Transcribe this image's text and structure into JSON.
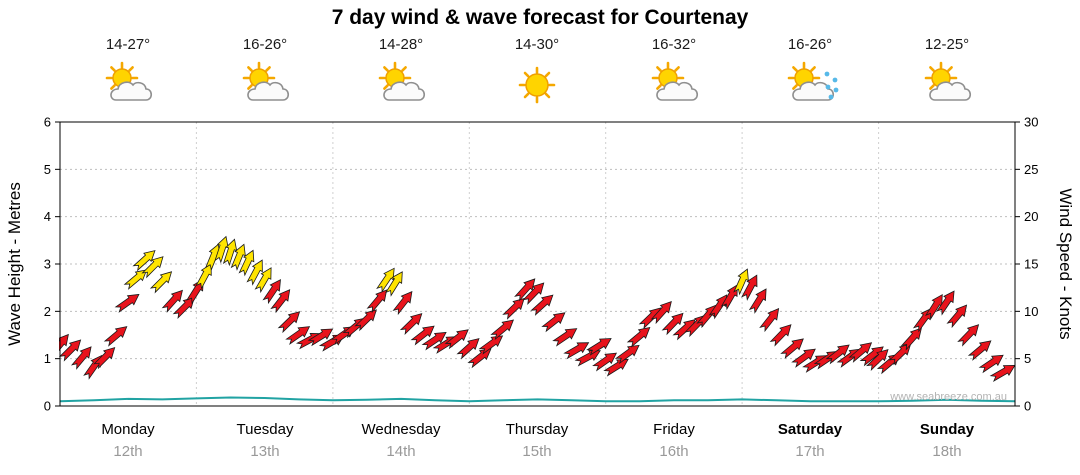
{
  "chart_data": {
    "type": "scatter",
    "marker": "directional-wind-arrow",
    "title": "7 day wind & wave forecast for Courtenay",
    "watermark": "www.seabreeze.com.au",
    "left_axis_label": "Wave Height - Metres",
    "right_axis_label": "Wind Speed - Knots",
    "left_ticks": [
      0,
      1,
      2,
      3,
      4,
      5,
      6
    ],
    "right_ticks": [
      0,
      5,
      10,
      15,
      20,
      25,
      30
    ],
    "grid": "dotted-horizontal-and-day-boundaries",
    "legend": "none",
    "days": [
      {
        "name": "Monday",
        "date": "12th",
        "temp": "14-27°",
        "icon": "partly-cloudy",
        "bold": false
      },
      {
        "name": "Tuesday",
        "date": "13th",
        "temp": "16-26°",
        "icon": "partly-cloudy",
        "bold": false
      },
      {
        "name": "Wednesday",
        "date": "14th",
        "temp": "14-28°",
        "icon": "partly-cloudy",
        "bold": false
      },
      {
        "name": "Thursday",
        "date": "15th",
        "temp": "14-30°",
        "icon": "sunny",
        "bold": false
      },
      {
        "name": "Friday",
        "date": "16th",
        "temp": "16-32°",
        "icon": "partly-cloudy",
        "bold": false
      },
      {
        "name": "Saturday",
        "date": "17th",
        "temp": "16-26°",
        "icon": "rain-showers",
        "bold": true
      },
      {
        "name": "Sunday",
        "date": "18th",
        "temp": "12-25°",
        "icon": "partly-cloudy",
        "bold": true
      }
    ],
    "colors": {
      "moderate": "#e8131c",
      "strong": "#ffe400",
      "wave": "#21a3a3",
      "yellow_threshold_knots": 13
    },
    "wind": {
      "unit": "knots",
      "ylim": [
        0,
        30
      ],
      "points_format": [
        "hours_from_start",
        "speed_knots",
        "direction_deg_to"
      ],
      "points": [
        [
          0,
          6.5,
          40
        ],
        [
          2,
          6.0,
          45
        ],
        [
          4,
          5.2,
          40
        ],
        [
          6,
          4.2,
          35
        ],
        [
          8,
          5.2,
          45
        ],
        [
          10,
          7.5,
          50
        ],
        [
          12,
          11.0,
          55
        ],
        [
          13.5,
          13.5,
          50
        ],
        [
          15,
          15.5,
          48
        ],
        [
          16.5,
          14.8,
          45
        ],
        [
          18,
          13.2,
          45
        ],
        [
          20,
          11.2,
          42
        ],
        [
          22,
          10.5,
          45
        ],
        [
          24,
          12.2,
          32
        ],
        [
          25.5,
          13.8,
          28
        ],
        [
          27,
          15.8,
          22
        ],
        [
          28.5,
          16.6,
          18
        ],
        [
          30,
          16.3,
          18
        ],
        [
          31.5,
          15.8,
          22
        ],
        [
          33,
          15.2,
          25
        ],
        [
          34.5,
          14.2,
          28
        ],
        [
          36,
          13.4,
          30
        ],
        [
          37.5,
          12.2,
          34
        ],
        [
          39,
          11.2,
          38
        ],
        [
          40.5,
          9.0,
          46
        ],
        [
          42,
          7.6,
          55
        ],
        [
          44,
          7.0,
          62
        ],
        [
          46,
          7.4,
          58
        ],
        [
          48,
          6.8,
          60
        ],
        [
          50,
          7.6,
          55
        ],
        [
          52,
          8.4,
          50
        ],
        [
          54,
          9.2,
          46
        ],
        [
          56,
          11.2,
          40
        ],
        [
          57.5,
          13.4,
          34
        ],
        [
          59,
          13.0,
          32
        ],
        [
          60.5,
          11.0,
          38
        ],
        [
          62,
          8.8,
          46
        ],
        [
          64,
          7.6,
          52
        ],
        [
          66,
          7.0,
          56
        ],
        [
          68,
          6.6,
          58
        ],
        [
          70,
          7.2,
          52
        ],
        [
          72,
          6.2,
          48
        ],
        [
          74,
          5.2,
          52
        ],
        [
          76,
          6.6,
          54
        ],
        [
          78,
          8.2,
          50
        ],
        [
          80,
          10.4,
          46
        ],
        [
          82,
          12.4,
          42
        ],
        [
          83.5,
          12.0,
          44
        ],
        [
          85,
          10.8,
          48
        ],
        [
          87,
          9.0,
          52
        ],
        [
          89,
          7.4,
          56
        ],
        [
          91,
          6.0,
          60
        ],
        [
          93,
          5.2,
          62
        ],
        [
          95,
          6.4,
          58
        ],
        [
          96,
          4.8,
          55
        ],
        [
          98,
          4.2,
          58
        ],
        [
          100,
          5.6,
          54
        ],
        [
          102,
          7.4,
          50
        ],
        [
          104,
          9.4,
          46
        ],
        [
          106,
          10.0,
          42
        ],
        [
          108,
          8.8,
          44
        ],
        [
          110,
          8.2,
          48
        ],
        [
          112,
          8.6,
          44
        ],
        [
          114,
          9.6,
          40
        ],
        [
          116,
          10.6,
          34
        ],
        [
          118,
          11.6,
          30
        ],
        [
          120,
          13.2,
          24
        ],
        [
          121.5,
          12.6,
          28
        ],
        [
          123,
          11.2,
          32
        ],
        [
          125,
          9.2,
          38
        ],
        [
          127,
          7.6,
          44
        ],
        [
          129,
          6.2,
          50
        ],
        [
          131,
          5.2,
          54
        ],
        [
          133,
          4.6,
          58
        ],
        [
          135,
          5.0,
          56
        ],
        [
          137,
          5.6,
          52
        ],
        [
          139,
          5.2,
          54
        ],
        [
          141,
          5.8,
          50
        ],
        [
          143,
          5.4,
          52
        ],
        [
          144,
          5.0,
          46
        ],
        [
          146,
          4.6,
          50
        ],
        [
          148,
          5.6,
          46
        ],
        [
          150,
          7.2,
          42
        ],
        [
          152,
          9.2,
          36
        ],
        [
          154,
          10.6,
          32
        ],
        [
          156,
          11.0,
          34
        ],
        [
          158,
          9.6,
          40
        ],
        [
          160,
          7.6,
          44
        ],
        [
          162,
          6.0,
          50
        ],
        [
          164,
          4.6,
          56
        ],
        [
          166,
          3.6,
          60
        ]
      ]
    },
    "wave": {
      "unit": "metres",
      "ylim": [
        0,
        6
      ],
      "points_format": [
        "hours_from_start",
        "height_m"
      ],
      "points": [
        [
          0,
          0.1
        ],
        [
          6,
          0.12
        ],
        [
          12,
          0.15
        ],
        [
          18,
          0.14
        ],
        [
          24,
          0.16
        ],
        [
          30,
          0.18
        ],
        [
          36,
          0.17
        ],
        [
          42,
          0.14
        ],
        [
          48,
          0.12
        ],
        [
          54,
          0.13
        ],
        [
          60,
          0.15
        ],
        [
          66,
          0.12
        ],
        [
          72,
          0.1
        ],
        [
          78,
          0.12
        ],
        [
          84,
          0.14
        ],
        [
          90,
          0.12
        ],
        [
          96,
          0.1
        ],
        [
          102,
          0.1
        ],
        [
          108,
          0.12
        ],
        [
          114,
          0.12
        ],
        [
          120,
          0.14
        ],
        [
          126,
          0.12
        ],
        [
          132,
          0.1
        ],
        [
          138,
          0.1
        ],
        [
          144,
          0.1
        ],
        [
          150,
          0.11
        ],
        [
          156,
          0.13
        ],
        [
          162,
          0.11
        ],
        [
          168,
          0.1
        ]
      ]
    }
  }
}
